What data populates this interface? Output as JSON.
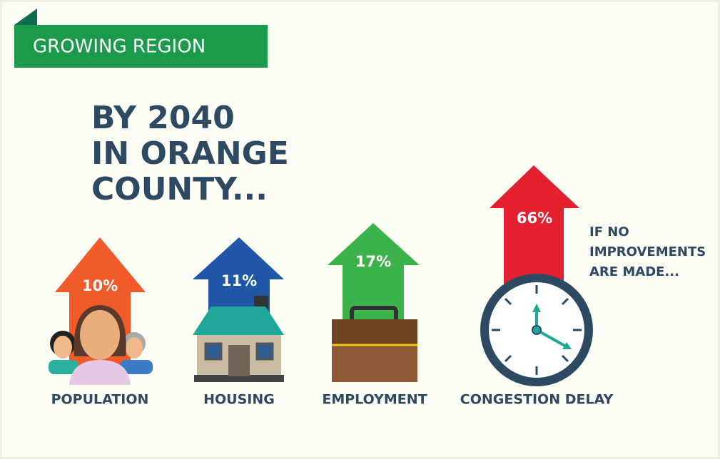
{
  "banner": "GROWING REGION",
  "headline": [
    "BY 2040",
    "IN ORANGE",
    "COUNTY..."
  ],
  "items": [
    {
      "label": "POPULATION",
      "change": "10%"
    },
    {
      "label": "HOUSING",
      "change": "11%"
    },
    {
      "label": "EMPLOYMENT",
      "change": "17%"
    },
    {
      "label": "CONGESTION DELAY",
      "change": "66%"
    }
  ],
  "note": [
    "IF NO",
    "IMPROVEMENTS",
    "ARE MADE..."
  ]
}
